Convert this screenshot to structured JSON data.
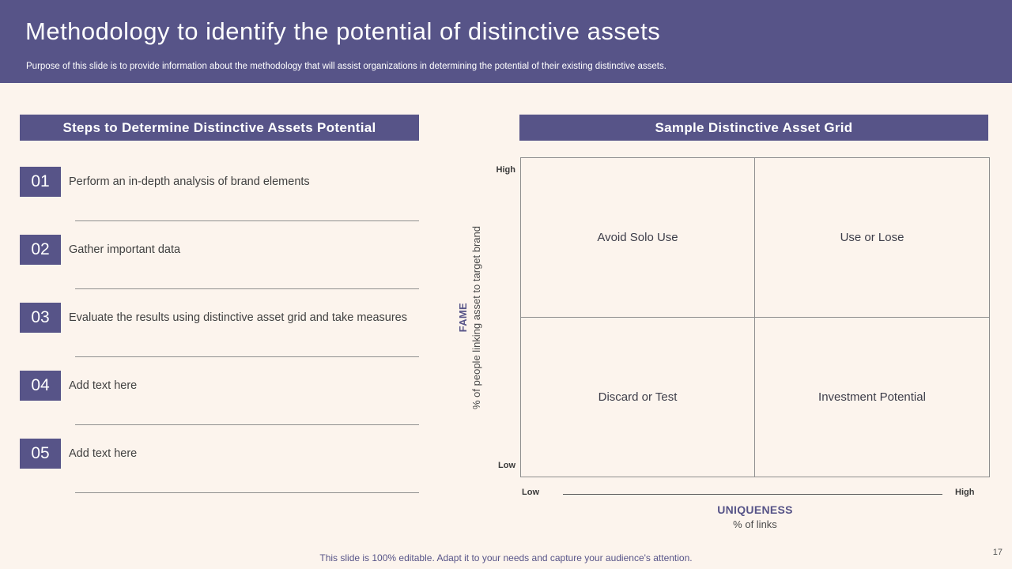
{
  "header": {
    "title": "Methodology to identify the potential of distinctive assets",
    "subtitle": "Purpose of this slide is to provide information about the methodology that will assist organizations in determining the potential of their existing distinctive assets."
  },
  "steps_panel": {
    "title": "Steps to Determine Distinctive Assets Potential",
    "steps": [
      {
        "number": "01",
        "text": "Perform an in-depth analysis of brand elements"
      },
      {
        "number": "02",
        "text": "Gather important data"
      },
      {
        "number": "03",
        "text": "Evaluate the results using distinctive asset grid and take measures"
      },
      {
        "number": "04",
        "text": "Add text here"
      },
      {
        "number": "05",
        "text": "Add text here"
      }
    ]
  },
  "grid_panel": {
    "title": "Sample Distinctive Asset Grid",
    "quadrants": {
      "top_left": "Avoid Solo Use",
      "top_right": "Use or Lose",
      "bottom_left": "Discard or Test",
      "bottom_right": "Investment Potential"
    },
    "y_axis": {
      "high_label": "High",
      "low_label": "Low",
      "title": "FAME",
      "subtitle": "% of people linking asset to target brand"
    },
    "x_axis": {
      "low_label": "Low",
      "high_label": "High",
      "title": "UNIQUENESS",
      "subtitle": "% of links"
    }
  },
  "footer": {
    "note": "This slide is 100% editable. Adapt it to your needs and capture your audience's attention.",
    "page_number": "17"
  },
  "colors": {
    "accent": "#575488",
    "background": "#FCF4ED"
  }
}
